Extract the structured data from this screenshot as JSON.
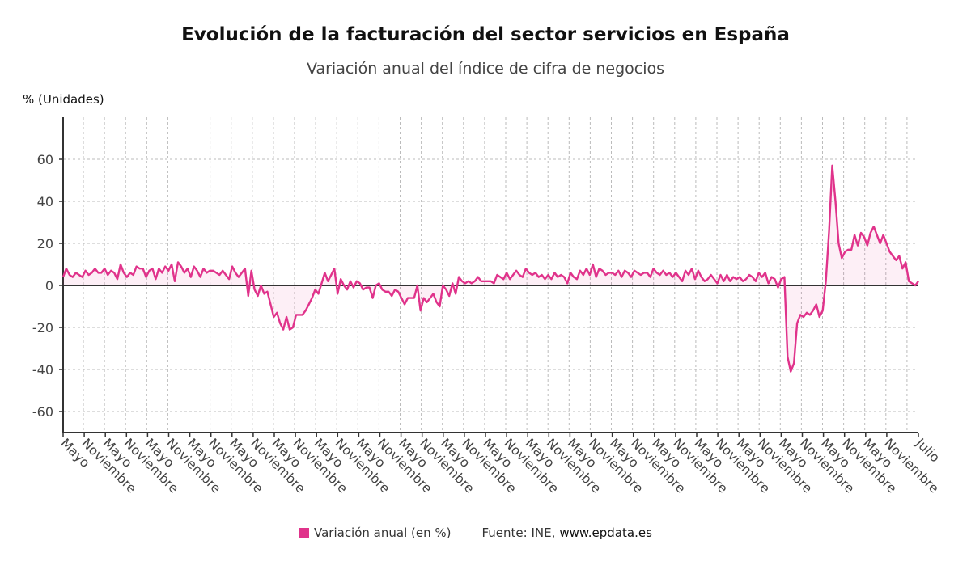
{
  "chart_data": {
    "type": "line",
    "title": "Evolución de la facturación del sector servicios en España",
    "subtitle": "Variación anual del índice de cifra de negocios",
    "ylabel": "% (Unidades)",
    "xlabel": "",
    "ylim": [
      -70,
      80
    ],
    "yticks": [
      -60,
      -40,
      -20,
      0,
      20,
      40,
      60
    ],
    "grid": true,
    "legend_position": "bottom",
    "color": "#e0338b",
    "x_tick_labels": [
      "Mayo",
      "Noviembre",
      "Mayo",
      "Noviembre",
      "Mayo",
      "Noviembre",
      "Mayo",
      "Noviembre",
      "Mayo",
      "Noviembre",
      "Mayo",
      "Noviembre",
      "Mayo",
      "Noviembre",
      "Mayo",
      "Noviembre",
      "Mayo",
      "Noviembre",
      "Mayo",
      "Noviembre",
      "Mayo",
      "Noviembre",
      "Mayo",
      "Noviembre",
      "Mayo",
      "Noviembre",
      "Mayo",
      "Noviembre",
      "Mayo",
      "Noviembre",
      "Mayo",
      "Noviembre",
      "Mayo",
      "Noviembre",
      "Mayo",
      "Noviembre",
      "Mayo",
      "Noviembre",
      "Mayo",
      "Noviembre",
      "Julio"
    ],
    "series": [
      {
        "name": "Variación anual (en %)",
        "values": [
          4,
          8,
          5,
          4,
          6,
          5,
          4,
          7,
          5,
          6,
          8,
          6,
          6,
          8,
          5,
          7,
          6,
          3,
          10,
          6,
          4,
          6,
          5,
          9,
          8,
          8,
          4,
          7,
          8,
          3,
          8,
          6,
          9,
          7,
          10,
          2,
          11,
          9,
          6,
          8,
          4,
          9,
          7,
          4,
          8,
          6,
          7,
          7,
          6,
          5,
          7,
          5,
          3,
          9,
          6,
          4,
          6,
          8,
          -5,
          7,
          -2,
          -5,
          0,
          -4,
          -3,
          -9,
          -15,
          -13,
          -18,
          -21,
          -15,
          -21,
          -20,
          -14,
          -14,
          -14,
          -12,
          -9,
          -6,
          -2,
          -4,
          1,
          6,
          2,
          5,
          8,
          -4,
          3,
          0,
          -2,
          2,
          -1,
          2,
          1,
          -2,
          -1,
          -1,
          -6,
          0,
          1,
          -2,
          -3,
          -3,
          -5,
          -2,
          -3,
          -6,
          -9,
          -6,
          -6,
          -6,
          0,
          -12,
          -6,
          -8,
          -6,
          -4,
          -8,
          -10,
          0,
          -2,
          -5,
          1,
          -4,
          4,
          2,
          1,
          2,
          1,
          2,
          4,
          2,
          2,
          2,
          2,
          1,
          5,
          4,
          3,
          6,
          3,
          5,
          7,
          5,
          4,
          8,
          6,
          5,
          6,
          4,
          5,
          3,
          5,
          3,
          6,
          4,
          5,
          4,
          1,
          6,
          4,
          3,
          7,
          5,
          8,
          5,
          10,
          4,
          8,
          7,
          5,
          6,
          6,
          5,
          7,
          4,
          7,
          6,
          4,
          7,
          6,
          5,
          6,
          6,
          4,
          8,
          6,
          5,
          7,
          5,
          6,
          4,
          6,
          4,
          2,
          7,
          5,
          8,
          3,
          7,
          4,
          2,
          3,
          5,
          3,
          1,
          5,
          2,
          5,
          2,
          4,
          3,
          4,
          2,
          3,
          5,
          4,
          2,
          6,
          4,
          6,
          1,
          4,
          3,
          -1,
          3,
          4,
          -34,
          -41,
          -37,
          -18,
          -14,
          -15,
          -13,
          -14,
          -12,
          -9,
          -15,
          -12,
          2,
          26,
          57,
          40,
          20,
          13,
          16,
          17,
          17,
          24,
          19,
          25,
          23,
          19,
          25,
          28,
          24,
          20,
          24,
          20,
          16,
          14,
          12,
          14,
          8,
          11,
          2,
          1,
          0,
          2
        ]
      }
    ],
    "annotations": []
  },
  "legend": {
    "label": "Variación anual (en %)",
    "source_prefix": "Fuente: INE,",
    "source_url": "www.epdata.es"
  }
}
